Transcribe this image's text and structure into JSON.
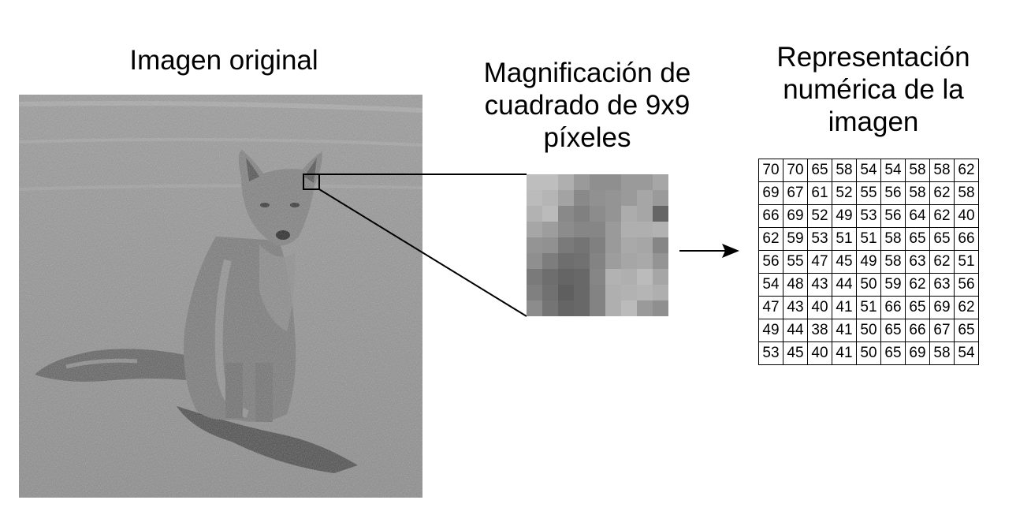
{
  "titles": {
    "original": "Imagen original",
    "magnification": "Magnificación de cuadrado de 9x9 píxeles",
    "numeric": "Representación numérica de la imagen"
  },
  "icons": {
    "photo": "fox-photo-icon",
    "arrow": "arrow-right-icon"
  },
  "colors": {
    "foreground": "#000000",
    "background": "#ffffff"
  },
  "pixel_values": [
    [
      70,
      70,
      65,
      58,
      54,
      54,
      58,
      58,
      62
    ],
    [
      69,
      67,
      61,
      52,
      55,
      56,
      58,
      62,
      58
    ],
    [
      66,
      69,
      52,
      49,
      53,
      56,
      64,
      62,
      40
    ],
    [
      62,
      59,
      53,
      51,
      51,
      58,
      65,
      65,
      66
    ],
    [
      56,
      55,
      47,
      45,
      49,
      58,
      63,
      62,
      51
    ],
    [
      54,
      48,
      43,
      44,
      50,
      59,
      62,
      63,
      56
    ],
    [
      47,
      43,
      40,
      41,
      51,
      66,
      65,
      69,
      62
    ],
    [
      49,
      44,
      38,
      41,
      50,
      65,
      66,
      67,
      65
    ],
    [
      53,
      45,
      40,
      41,
      50,
      65,
      69,
      58,
      54
    ]
  ]
}
